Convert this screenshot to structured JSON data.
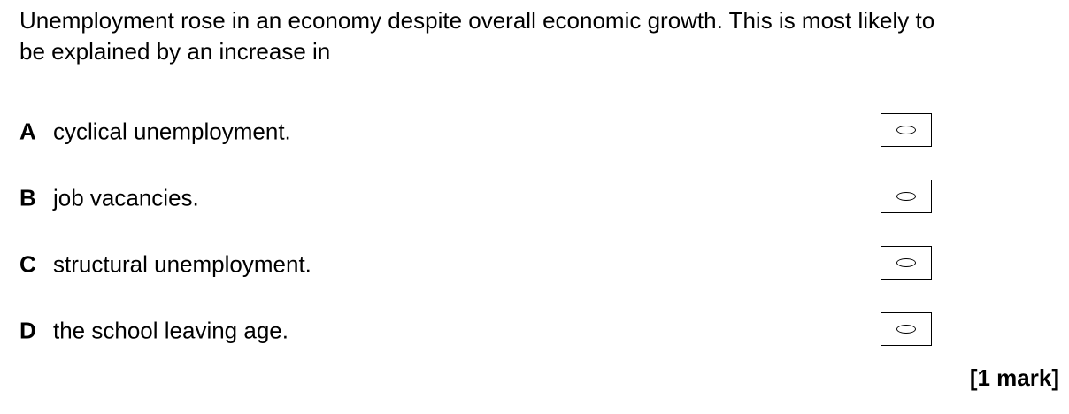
{
  "question": {
    "line1": "Unemployment rose in an economy despite overall economic growth.  This is most likely to",
    "line2": "be explained by an increase in"
  },
  "options": [
    {
      "letter": "A",
      "text": "cyclical unemployment.",
      "selected": false
    },
    {
      "letter": "B",
      "text": "job vacancies.",
      "selected": false
    },
    {
      "letter": "C",
      "text": "structural unemployment.",
      "selected": false
    },
    {
      "letter": "D",
      "text": "the school leaving age.",
      "selected": false
    }
  ],
  "mark": "[1 mark]"
}
